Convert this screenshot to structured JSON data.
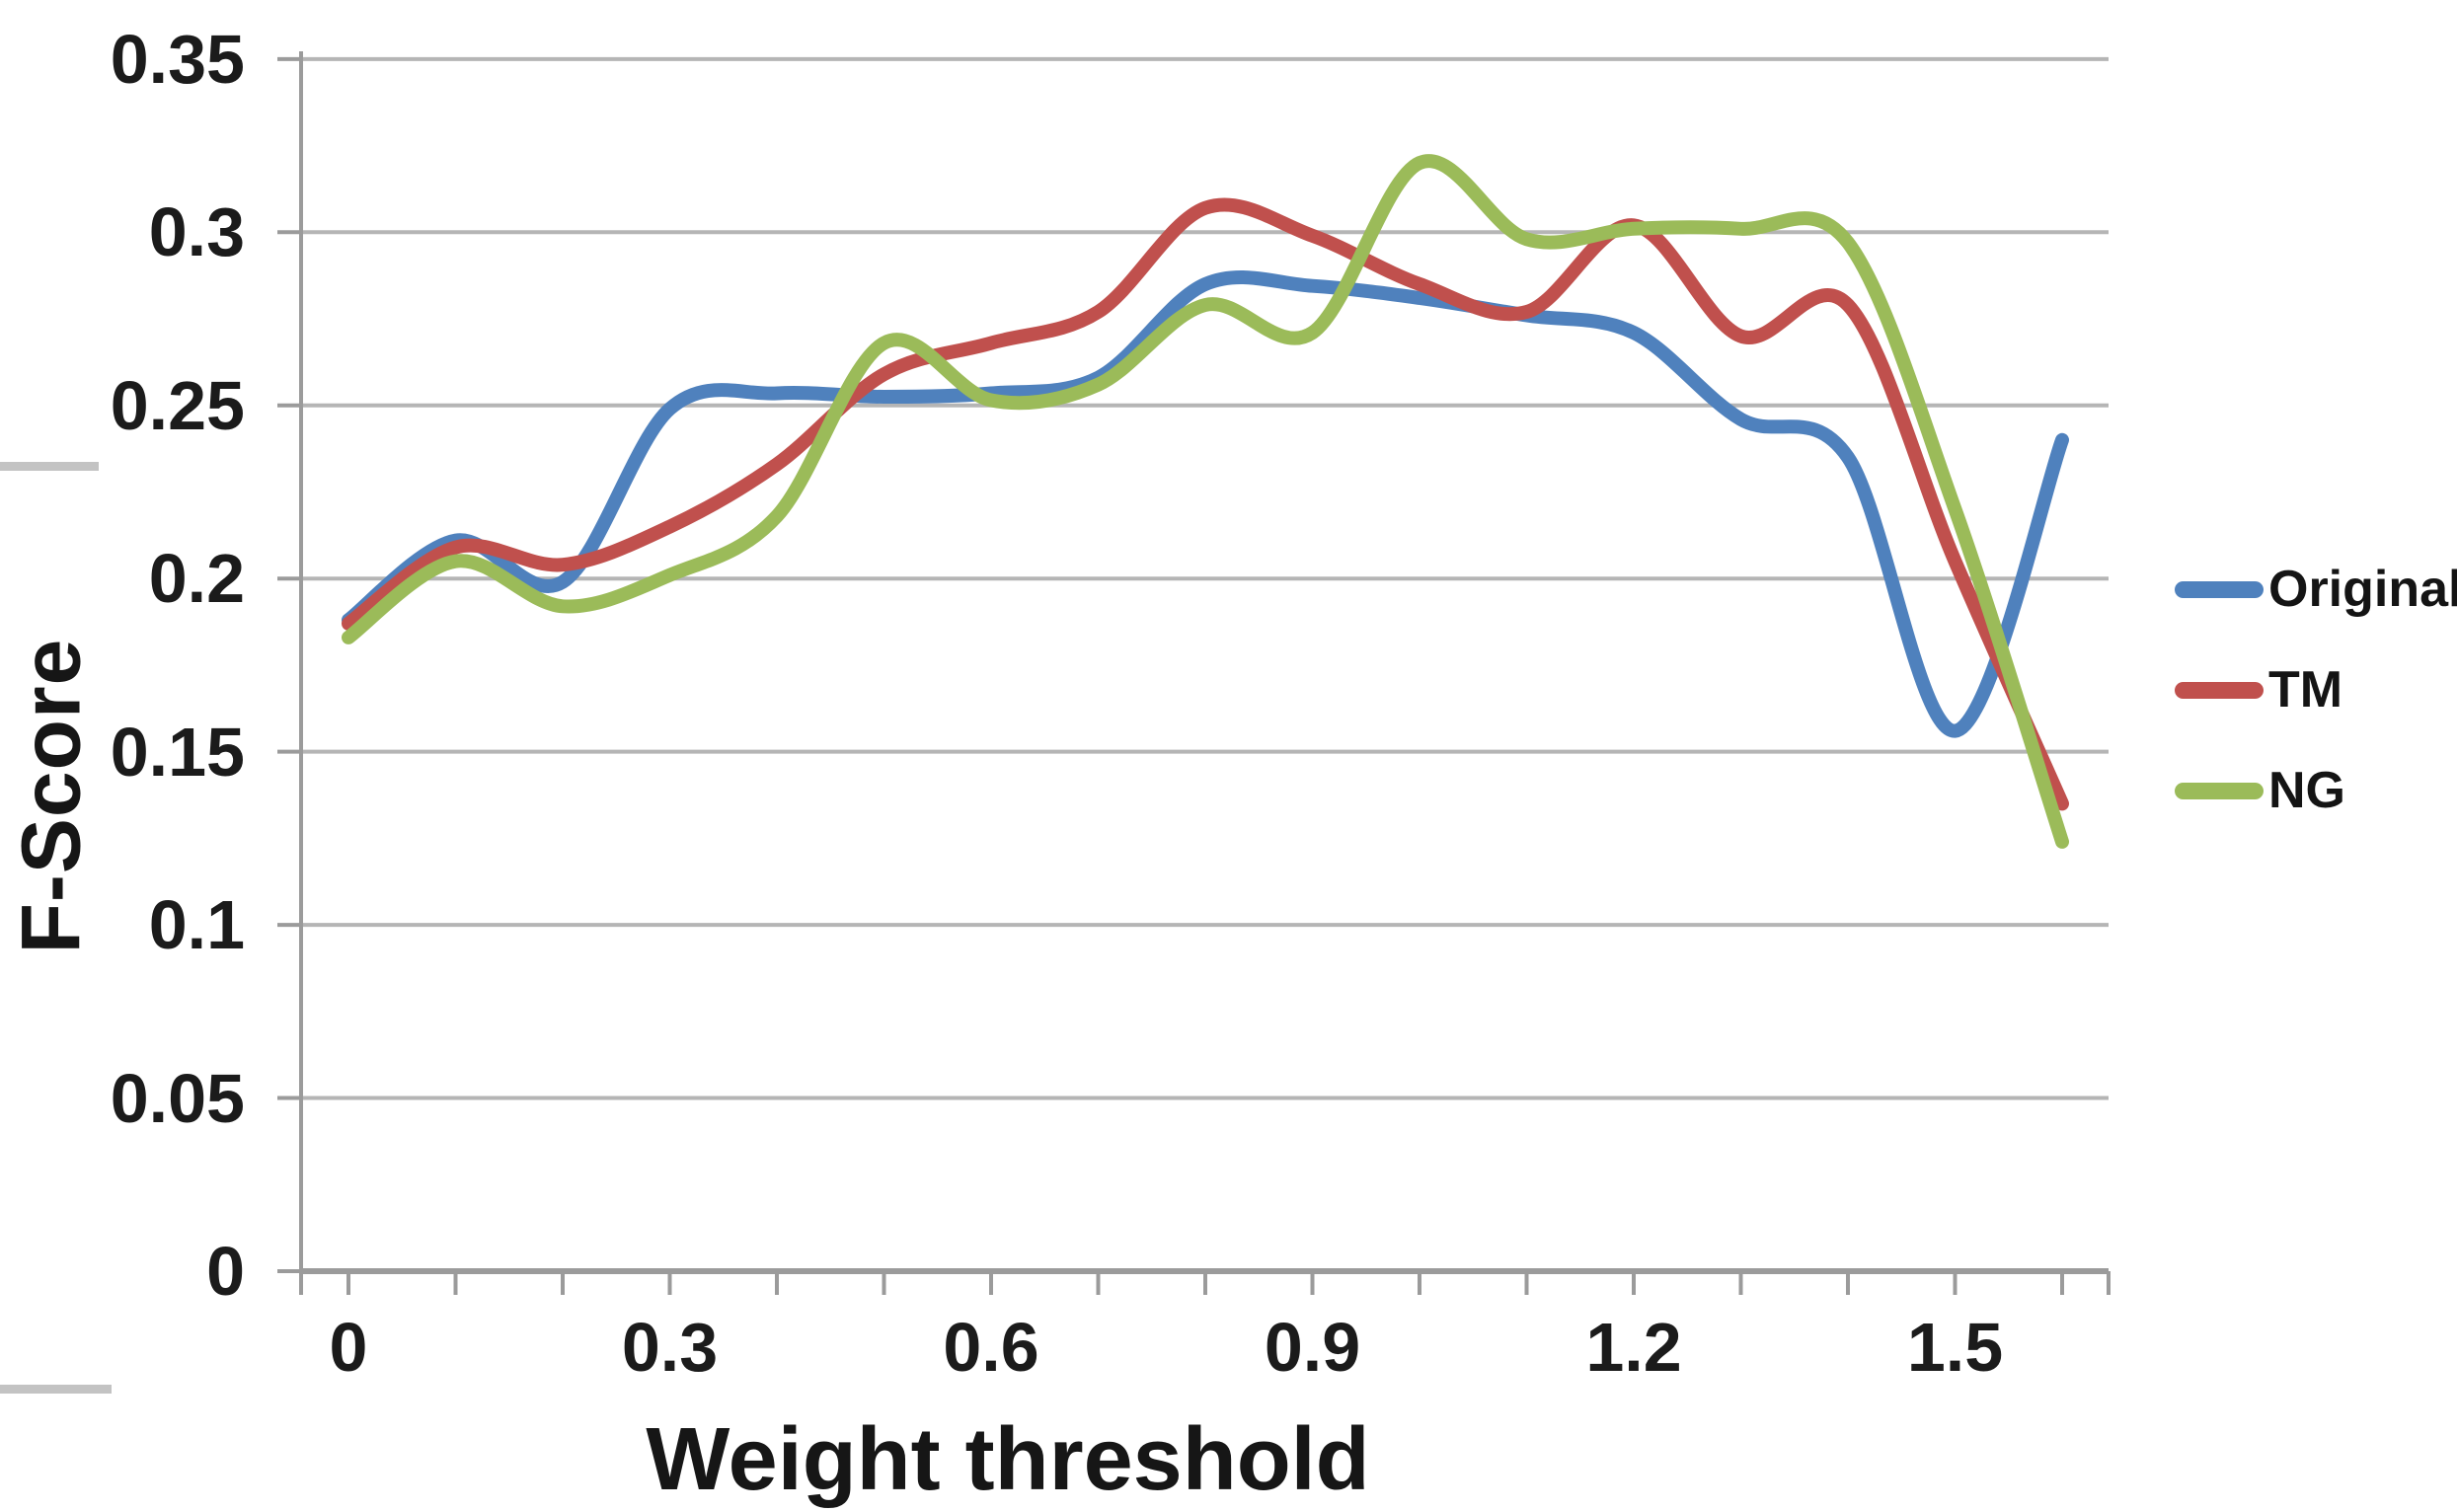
{
  "chart_data": {
    "type": "line",
    "title": "",
    "xlabel": "Weight threshold",
    "ylabel": "F-Score",
    "x": [
      0,
      0.1,
      0.2,
      0.3,
      0.4,
      0.5,
      0.6,
      0.7,
      0.8,
      0.9,
      1.0,
      1.1,
      1.2,
      1.3,
      1.4,
      1.5,
      1.6
    ],
    "xlim": [
      0,
      1.6
    ],
    "ylim": [
      0,
      0.35
    ],
    "grid": "horizontal",
    "legend_position": "right",
    "x_major_ticks": [
      {
        "t": 0,
        "label": "0"
      },
      {
        "t": 0.3,
        "label": "0.3"
      },
      {
        "t": 0.6,
        "label": "0.6"
      },
      {
        "t": 0.9,
        "label": "0.9"
      },
      {
        "t": 1.2,
        "label": "1.2"
      },
      {
        "t": 1.5,
        "label": "1.5"
      }
    ],
    "y_ticks": [
      {
        "v": 0.35,
        "label": "0.35"
      },
      {
        "v": 0.3,
        "label": "0.3"
      },
      {
        "v": 0.25,
        "label": "0.25"
      },
      {
        "v": 0.2,
        "label": "0.2"
      },
      {
        "v": 0.15,
        "label": "0.15"
      },
      {
        "v": 0.1,
        "label": "0.1"
      },
      {
        "v": 0.05,
        "label": "0.05"
      },
      {
        "v": 0,
        "label": "0"
      }
    ],
    "series": [
      {
        "name": "Original",
        "color": "#4F81BD",
        "values": [
          0.188,
          0.211,
          0.199,
          0.249,
          0.2535,
          0.2525,
          0.2535,
          0.258,
          0.285,
          0.2845,
          0.281,
          0.276,
          0.271,
          0.246,
          0.235,
          0.156,
          0.24
        ]
      },
      {
        "name": "TM",
        "color": "#C0504D",
        "values": [
          0.187,
          0.209,
          0.204,
          0.215,
          0.233,
          0.259,
          0.268,
          0.277,
          0.307,
          0.299,
          0.285,
          0.277,
          0.302,
          0.27,
          0.279,
          0.205,
          0.135
        ]
      },
      {
        "name": "NG",
        "color": "#9BBB59",
        "values": [
          0.183,
          0.205,
          0.192,
          0.201,
          0.218,
          0.268,
          0.2515,
          0.256,
          0.279,
          0.271,
          0.32,
          0.298,
          0.301,
          0.301,
          0.297,
          0.22,
          0.124
        ]
      }
    ],
    "style_colors": {
      "gridline": "#b5b5b5",
      "axis": "#9b9b9b",
      "text": "#1b1b1b"
    }
  }
}
